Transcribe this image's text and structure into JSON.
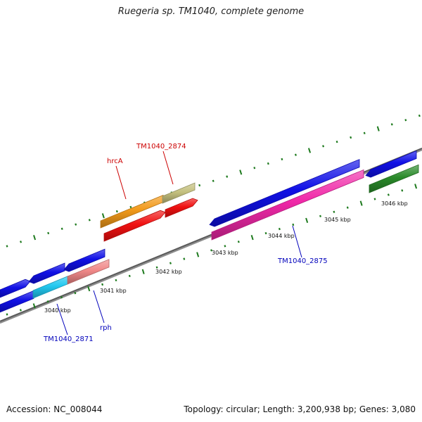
{
  "title": "Ruegeria sp. TM1040, complete genome",
  "footer": {
    "accession": "Accession: NC_008044",
    "summary": "Topology: circular; Length: 3,200,938 bp; Genes: 3,080"
  },
  "colors": {
    "backbone": "#8c8c8c",
    "tick": "#1e7a1e",
    "blue": "#1010e6",
    "cyan": "#22c8f0",
    "salmon": "#f08888",
    "orange": "#f29a1a",
    "olive": "#c4c07e",
    "red": "#f01010",
    "magenta": "#f028a8",
    "green": "#2a8a2a",
    "label_red": "#cc0000",
    "label_blue": "#0000bb"
  },
  "ticks": {
    "labels": [
      "3040 kbp",
      "3041 kbp",
      "3042 kbp",
      "3043 kbp",
      "3044 kbp",
      "3045 kbp",
      "3046 kbp"
    ]
  },
  "genes": {
    "labels": [
      {
        "text": "TM1040_2874",
        "color": "label_red"
      },
      {
        "text": "hrcA",
        "color": "label_red"
      },
      {
        "text": "TM1040_2875",
        "color": "label_blue"
      },
      {
        "text": "rph",
        "color": "label_blue"
      },
      {
        "text": "TM1040_2871",
        "color": "label_blue"
      }
    ]
  }
}
